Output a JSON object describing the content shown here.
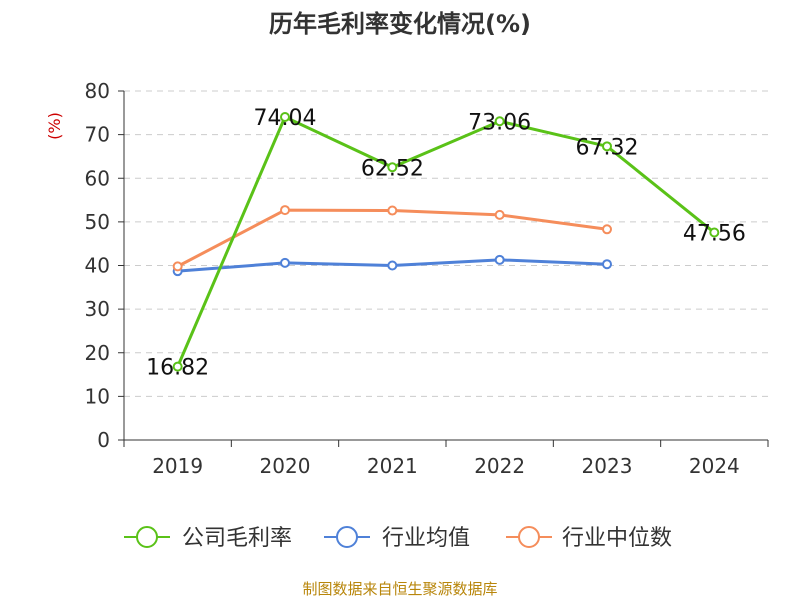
{
  "chart_data": {
    "type": "line",
    "title": "历年毛利率变化情况(%)",
    "ylabel": "(%)",
    "categories": [
      "2019",
      "2020",
      "2021",
      "2022",
      "2023",
      "2024"
    ],
    "ylim": [
      0,
      80
    ],
    "yticks": [
      0,
      10,
      20,
      30,
      40,
      50,
      60,
      70,
      80
    ],
    "grid": true,
    "legend_position": "bottom",
    "series": [
      {
        "name": "公司毛利率",
        "color": "#5ac218",
        "values": [
          16.82,
          74.04,
          62.52,
          73.06,
          67.32,
          47.56
        ],
        "data_labels": [
          "16.82",
          "74.04",
          "62.52",
          "73.06",
          "67.32",
          "47.56"
        ]
      },
      {
        "name": "行业均值",
        "color": "#4f81d8",
        "values": [
          38.7,
          40.6,
          40.0,
          41.3,
          40.3,
          null
        ]
      },
      {
        "name": "行业中位数",
        "color": "#f58d5b",
        "values": [
          39.8,
          52.7,
          52.6,
          51.6,
          48.3,
          null
        ]
      }
    ]
  },
  "source": "制图数据来自恒生聚源数据库"
}
